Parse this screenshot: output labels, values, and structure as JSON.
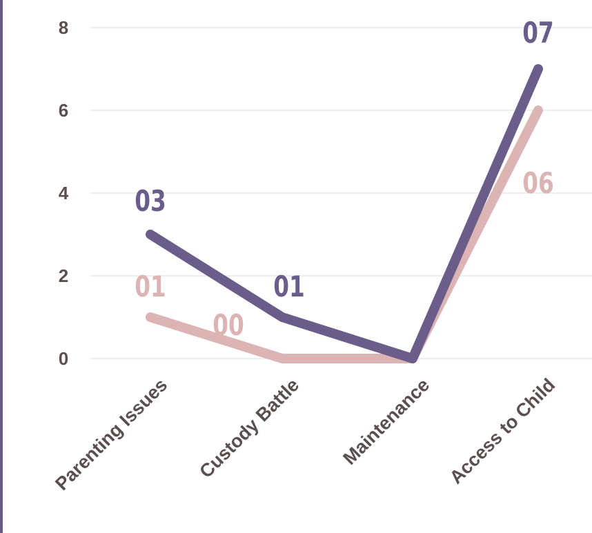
{
  "chart_data": {
    "type": "line",
    "categories": [
      "Parenting Issues",
      "Custody Battle",
      "Maintenance",
      "Access to Child"
    ],
    "series": [
      {
        "color": "#6a5d8a",
        "values": [
          3,
          1,
          0,
          7
        ],
        "labels": [
          "03",
          "01",
          "",
          "07"
        ]
      },
      {
        "color": "#dcb4b4",
        "values": [
          1,
          0,
          0,
          6
        ],
        "labels": [
          "01",
          "00",
          "",
          "06"
        ]
      }
    ],
    "yticks": [
      "0",
      "2",
      "4",
      "6",
      "8"
    ],
    "ylim": [
      0,
      8
    ],
    "grid": true,
    "legend": "none",
    "title": "",
    "xlabel": "",
    "ylabel": ""
  },
  "colors": {
    "grid": "#eeeeee",
    "tick_text": "#5a4e4e",
    "accent_rule": "#6a5a8a"
  }
}
